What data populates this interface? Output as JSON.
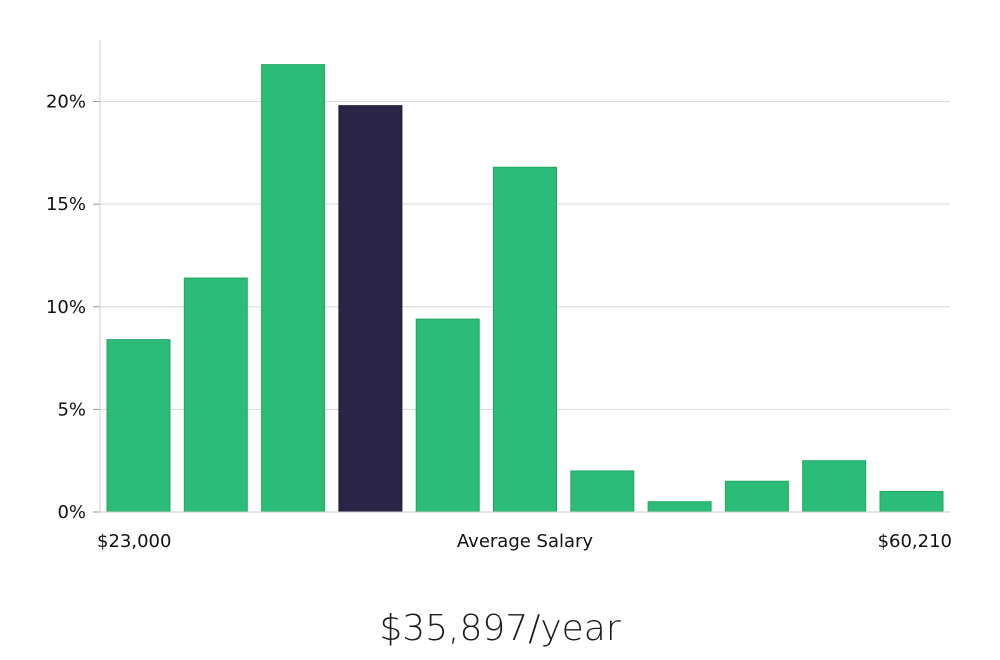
{
  "chart_data": {
    "type": "bar",
    "x_axis": {
      "min_label": "$23,000",
      "center_label": "Average Salary",
      "max_label": "$60,210"
    },
    "ylim": [
      0,
      23
    ],
    "y_ticks": [
      0,
      5,
      10,
      15,
      20
    ],
    "y_tick_labels": [
      "0%",
      "5%",
      "10%",
      "15%",
      "20%"
    ],
    "grid": true,
    "values": [
      8.4,
      11.4,
      21.8,
      19.8,
      9.4,
      16.8,
      2.0,
      0.5,
      1.5,
      2.5,
      1.0
    ],
    "highlight_index": 3,
    "colors": {
      "bar": "#2bbd77",
      "highlight": "#2a2547",
      "grid": "#d9d9d9",
      "axis": "#cccccc"
    }
  },
  "salary": {
    "text": "$35,897/year"
  }
}
